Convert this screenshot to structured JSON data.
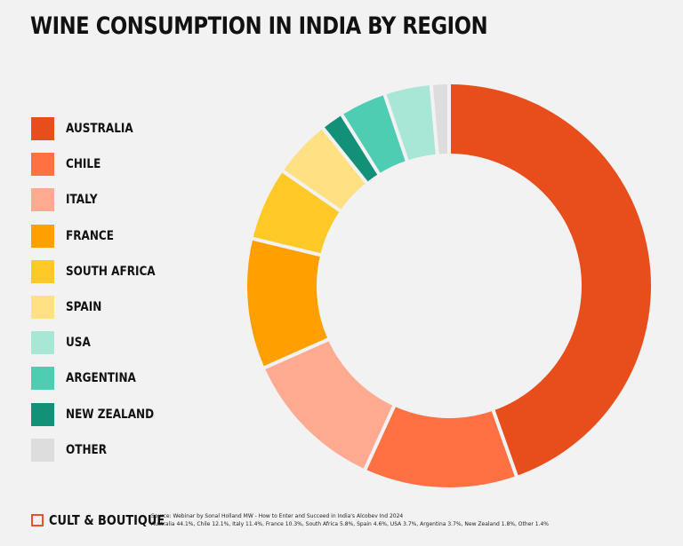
{
  "title": "WINE CONSUMPTION IN INDIA BY REGION",
  "chart_data": {
    "type": "pie",
    "donut": true,
    "title": "WINE CONSUMPTION IN INDIA BY REGION",
    "categories": [
      "AUSTRALIA",
      "CHILE",
      "ITALY",
      "FRANCE",
      "SOUTH AFRICA",
      "SPAIN",
      "USA",
      "ARGENTINA",
      "NEW ZEALAND",
      "OTHER"
    ],
    "values": [
      44.1,
      12.1,
      11.4,
      10.3,
      5.8,
      4.6,
      3.7,
      3.7,
      1.8,
      1.4
    ],
    "slice_order": [
      "AUSTRALIA",
      "CHILE",
      "ITALY",
      "FRANCE",
      "SOUTH AFRICA",
      "SPAIN",
      "NEW ZEALAND",
      "ARGENTINA",
      "USA",
      "OTHER"
    ],
    "colors": {
      "AUSTRALIA": "#e84e1b",
      "CHILE": "#ff7043",
      "ITALY": "#ffab91",
      "FRANCE": "#ffa000",
      "SOUTH AFRICA": "#ffca28",
      "SPAIN": "#ffe082",
      "USA": "#a8e6d6",
      "ARGENTINA": "#4ecdb3",
      "NEW ZEALAND": "#139078",
      "OTHER": "#dddddd"
    },
    "legend_position": "left"
  },
  "legend": [
    {
      "label": "AUSTRALIA",
      "color": "#e84e1b"
    },
    {
      "label": "CHILE",
      "color": "#ff7043"
    },
    {
      "label": "ITALY",
      "color": "#ffab91"
    },
    {
      "label": "FRANCE",
      "color": "#ffa000"
    },
    {
      "label": "SOUTH AFRICA",
      "color": "#ffca28"
    },
    {
      "label": "SPAIN",
      "color": "#ffe082"
    },
    {
      "label": "USA",
      "color": "#a8e6d6"
    },
    {
      "label": "ARGENTINA",
      "color": "#4ecdb3"
    },
    {
      "label": "NEW ZEALAND",
      "color": "#139078"
    },
    {
      "label": "OTHER",
      "color": "#dddddd"
    }
  ],
  "footer": {
    "brand": "CULT & BOUTIQUE",
    "brand_color": "#e8542a",
    "source_line1": "Source: Webinar by Sonal Holland MW - How to Enter and Succeed in India's Alcobev Ind 2024",
    "source_line2": "Australia 44.1%, Chile 12.1%, Italy 11.4%, France 10.3%, South Africa 5.8%, Spain 4.6%, USA 3.7%, Argentina 3.7%, New Zealand 1.8%, Other 1.4%"
  }
}
